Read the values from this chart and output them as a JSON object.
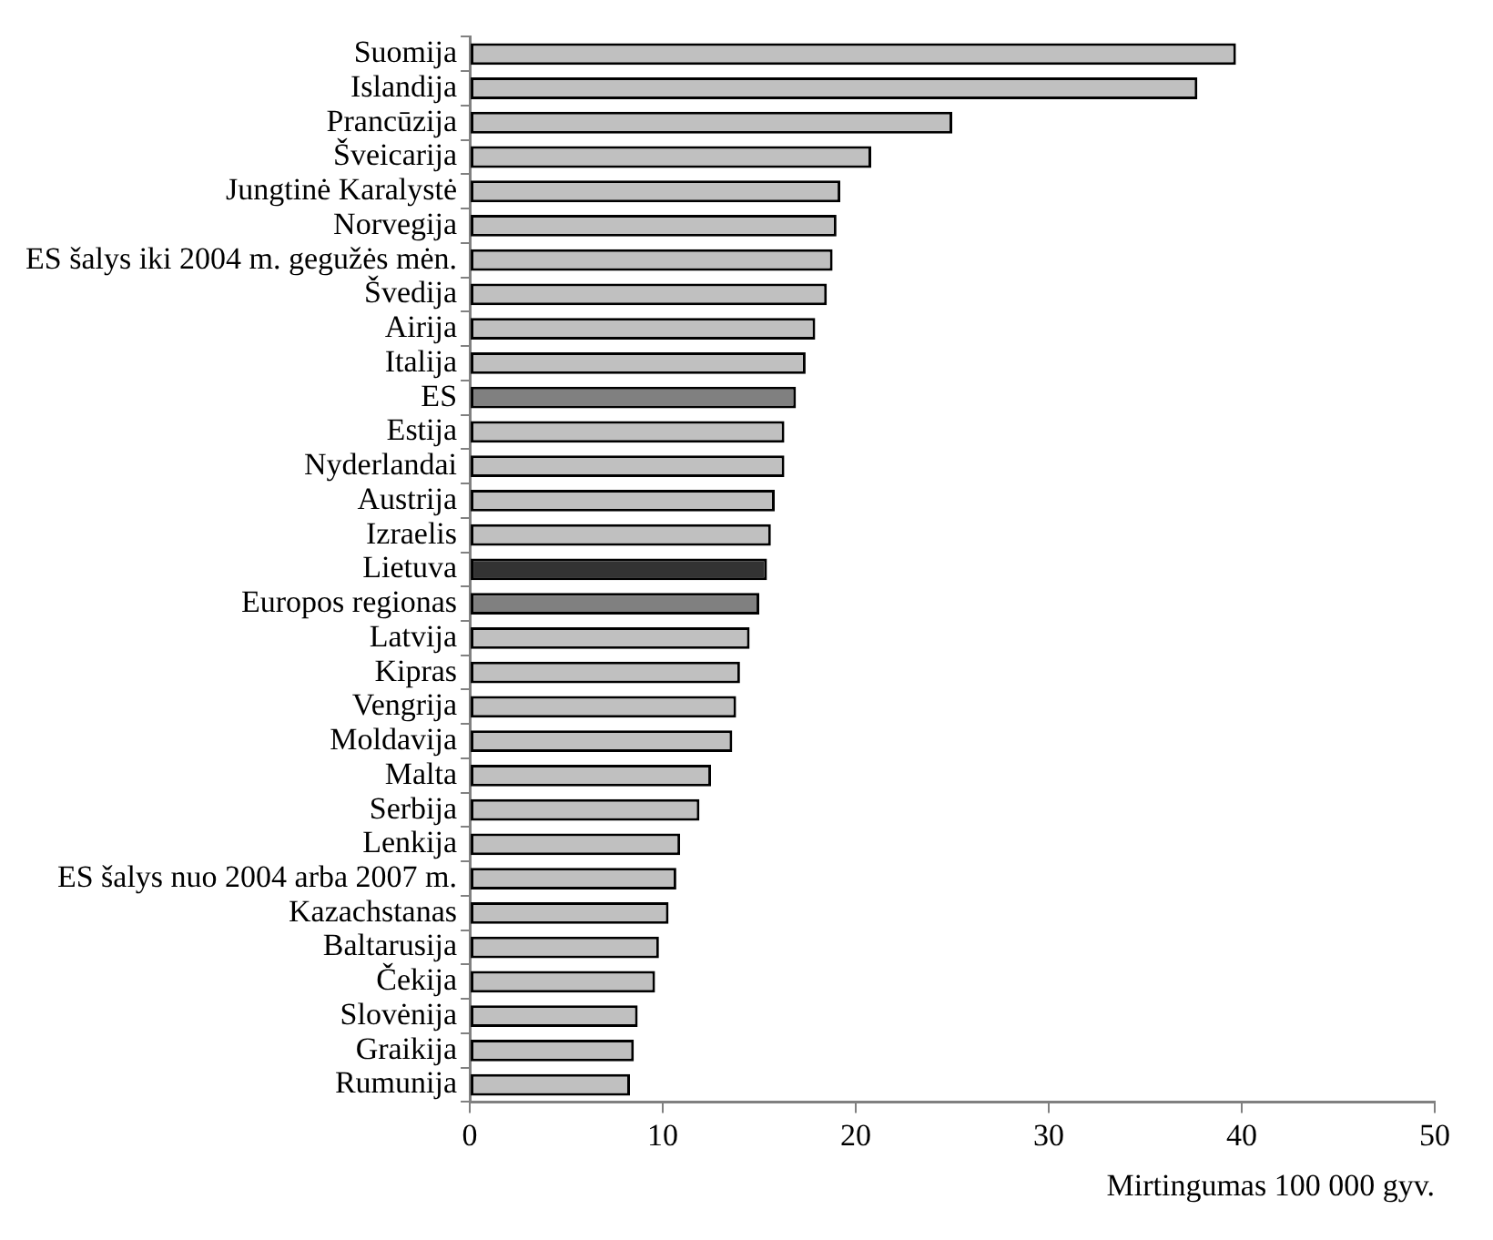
{
  "chart_data": {
    "type": "bar",
    "orientation": "horizontal",
    "xlabel": "Mirtingumas 100 000 gyv.",
    "categories": [
      "Suomija",
      "Islandija",
      "Prancūzija",
      "Šveicarija",
      "Jungtinė Karalystė",
      "Norvegija",
      "ES šalys iki 2004 m. gegužės mėn.",
      "Švedija",
      "Airija",
      "Italija",
      "ES",
      "Estija",
      "Nyderlandai",
      "Austrija",
      "Izraelis",
      "Lietuva",
      "Europos regionas",
      "Latvija",
      "Kipras",
      "Vengrija",
      "Moldavija",
      "Malta",
      "Serbija",
      "Lenkija",
      "ES šalys nuo 2004 arba 2007 m.",
      "Kazachstanas",
      "Baltarusija",
      "Čekija",
      "Slovėnija",
      "Graikija",
      "Rumunija"
    ],
    "values": [
      39.7,
      37.7,
      25.0,
      20.8,
      19.2,
      19.0,
      18.8,
      18.5,
      17.9,
      17.4,
      16.9,
      16.3,
      16.3,
      15.8,
      15.6,
      15.4,
      15.0,
      14.5,
      14.0,
      13.8,
      13.6,
      12.5,
      11.9,
      10.9,
      10.7,
      10.3,
      9.8,
      9.6,
      8.7,
      8.5,
      8.3
    ],
    "colors": [
      "#c0c0c0",
      "#c0c0c0",
      "#c0c0c0",
      "#c0c0c0",
      "#c0c0c0",
      "#c0c0c0",
      "#c0c0c0",
      "#c0c0c0",
      "#c0c0c0",
      "#c0c0c0",
      "#808080",
      "#c0c0c0",
      "#c0c0c0",
      "#c0c0c0",
      "#c0c0c0",
      "#333333",
      "#808080",
      "#c0c0c0",
      "#c0c0c0",
      "#c0c0c0",
      "#c0c0c0",
      "#c0c0c0",
      "#c0c0c0",
      "#c0c0c0",
      "#c0c0c0",
      "#c0c0c0",
      "#c0c0c0",
      "#c0c0c0",
      "#c0c0c0",
      "#c0c0c0",
      "#c0c0c0"
    ],
    "xlim": [
      0,
      50
    ],
    "xticks": [
      0,
      10,
      20,
      30,
      40,
      50
    ],
    "grid": false,
    "legend": false
  }
}
